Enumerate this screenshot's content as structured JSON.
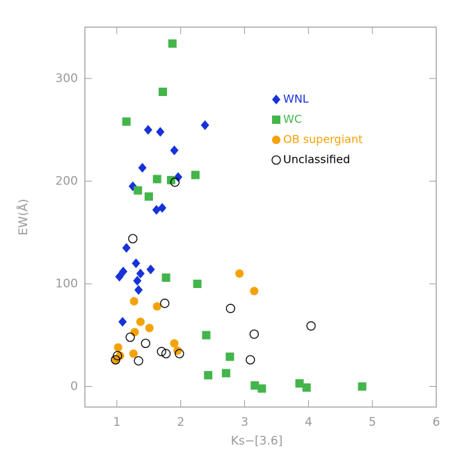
{
  "chart_data": {
    "type": "scatter",
    "x_label": "Ks−[3.6]",
    "y_label": "EW(Å)",
    "xlim": [
      0.5,
      6
    ],
    "ylim": [
      -20,
      350
    ],
    "xticks": [
      1,
      2,
      3,
      4,
      5,
      6
    ],
    "yticks": [
      0,
      100,
      200,
      300
    ],
    "legend": "upper right",
    "series": [
      {
        "name": "WNL",
        "color": "#1632d8",
        "marker": "diamond",
        "x": [
          2.38,
          1.49,
          1.68,
          1.9,
          1.4,
          1.96,
          1.25,
          1.62,
          1.71,
          1.15,
          1.3,
          1.1,
          1.04,
          1.53,
          1.37,
          1.32,
          1.34,
          1.09
        ],
        "values": [
          254.5,
          250,
          248,
          230,
          213,
          204,
          195,
          172,
          174,
          135,
          120,
          112,
          107,
          114,
          110,
          103,
          94,
          63
        ]
      },
      {
        "name": "WC",
        "color": "#43b54a",
        "marker": "square",
        "x": [
          1.87,
          1.72,
          1.15,
          2.23,
          1.63,
          1.85,
          1.33,
          1.5,
          1.77,
          2.26,
          2.4,
          2.77,
          2.43,
          2.71,
          3.16,
          3.27,
          3.86,
          3.97,
          4.84
        ],
        "values": [
          334,
          287,
          258,
          206,
          202,
          201,
          191,
          185,
          106,
          100,
          50,
          29,
          11,
          13,
          1,
          -2,
          3,
          -1,
          0
        ]
      },
      {
        "name": "OB supergiant",
        "color": "#f5a20a",
        "marker": "circle",
        "x": [
          2.92,
          3.15,
          1.27,
          1.63,
          1.37,
          1.51,
          1.28,
          1.9,
          1.95,
          1.02,
          1.26,
          1.05,
          0.99
        ],
        "values": [
          110,
          93,
          83,
          78,
          63,
          57,
          53,
          42,
          35,
          38,
          32,
          30,
          26
        ]
      },
      {
        "name": "Unclassified",
        "color": "#000000",
        "marker": "open-circle",
        "x": [
          1.91,
          1.25,
          1.75,
          2.78,
          4.04,
          3.15,
          1.21,
          1.45,
          1.7,
          1.77,
          1.98,
          3.09,
          1.01,
          0.98,
          1.34
        ],
        "values": [
          199,
          144,
          81,
          76,
          59,
          51,
          48,
          42,
          34,
          32,
          32,
          26,
          30,
          26,
          25
        ]
      }
    ]
  }
}
